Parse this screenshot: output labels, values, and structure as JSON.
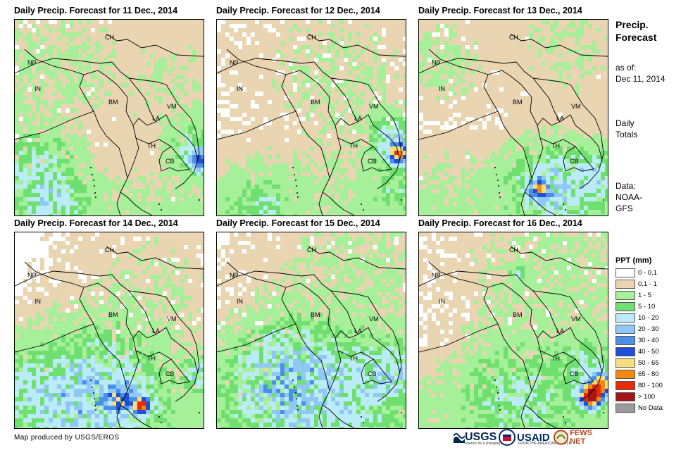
{
  "panels": [
    {
      "title": "Daily Precip. Forecast for 11 Dec., 2014",
      "scenario": 0
    },
    {
      "title": "Daily Precip. Forecast for 12 Dec., 2014",
      "scenario": 1
    },
    {
      "title": "Daily Precip. Forecast for 13 Dec., 2014",
      "scenario": 2
    },
    {
      "title": "Daily Precip. Forecast for 14 Dec., 2014",
      "scenario": 3
    },
    {
      "title": "Daily Precip. Forecast for 15 Dec., 2014",
      "scenario": 4
    },
    {
      "title": "Daily Precip. Forecast for 16 Dec., 2014",
      "scenario": 5
    }
  ],
  "country_labels": [
    "CH",
    "NP",
    "IN",
    "BM",
    "LA",
    "VM",
    "TH",
    "CB"
  ],
  "side": {
    "title_line1": "Precip.",
    "title_line2": "Forecast",
    "asof_line1": "as of:",
    "asof_line2": "Dec 11, 2014",
    "totals_line1": "Daily",
    "totals_line2": "Totals",
    "data_line1": "Data:",
    "data_line2": "NOAA-",
    "data_line3": "GFS"
  },
  "legend": {
    "title": "PPT (mm)",
    "items": [
      {
        "label": "0 - 0.1",
        "color": "#ffffff"
      },
      {
        "label": "0.1 - 1",
        "color": "#e9d5b2"
      },
      {
        "label": "1 - 5",
        "color": "#a6f09a"
      },
      {
        "label": "5 - 10",
        "color": "#6fe06f"
      },
      {
        "label": "10 - 20",
        "color": "#b9ecf7"
      },
      {
        "label": "20 - 30",
        "color": "#8fc8f5"
      },
      {
        "label": "30 - 40",
        "color": "#4a8fe8"
      },
      {
        "label": "40 - 50",
        "color": "#1e4fd9"
      },
      {
        "label": "50 - 65",
        "color": "#f7e07a"
      },
      {
        "label": "65 - 80",
        "color": "#f28a10"
      },
      {
        "label": "80 - 100",
        "color": "#e82a0c"
      },
      {
        "label": "> 100",
        "color": "#a51515"
      },
      {
        "label": "No Data",
        "color": "#9a9a9a"
      }
    ]
  },
  "credit": "Map produced by USGS/EROS",
  "logos": {
    "usgs": "USGS",
    "usgs_tagline": "science for a changing world",
    "usaid": "USAID",
    "usaid_tagline": "FROM THE AMERICAN PEOPLE",
    "fews": "FEWS NET"
  }
}
